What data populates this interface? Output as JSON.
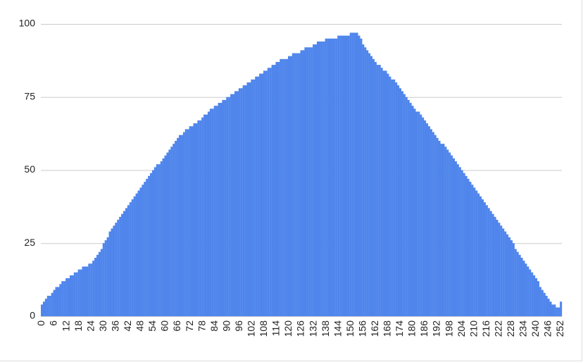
{
  "chart_data": {
    "type": "bar",
    "color": "#5086ec",
    "grid": true,
    "ylim": [
      0,
      100
    ],
    "yticks": [
      0,
      25,
      50,
      75,
      100
    ],
    "categories": [
      "0",
      null,
      null,
      null,
      null,
      null,
      "6",
      null,
      null,
      null,
      null,
      null,
      "12",
      null,
      null,
      null,
      null,
      null,
      "18",
      null,
      null,
      null,
      null,
      null,
      "24",
      null,
      null,
      null,
      null,
      null,
      "30",
      null,
      null,
      null,
      null,
      null,
      "36",
      null,
      null,
      null,
      null,
      null,
      "42",
      null,
      null,
      null,
      null,
      null,
      "48",
      null,
      null,
      null,
      null,
      null,
      "54",
      null,
      null,
      null,
      null,
      null,
      "60",
      null,
      null,
      null,
      null,
      null,
      "66",
      null,
      null,
      null,
      null,
      null,
      "72",
      null,
      null,
      null,
      null,
      null,
      "78",
      null,
      null,
      null,
      null,
      null,
      "84",
      null,
      null,
      null,
      null,
      null,
      "90",
      null,
      null,
      null,
      null,
      null,
      "96",
      null,
      null,
      null,
      null,
      null,
      "102",
      null,
      null,
      null,
      null,
      null,
      "108",
      null,
      null,
      null,
      null,
      null,
      "114",
      null,
      null,
      null,
      null,
      null,
      "120",
      null,
      null,
      null,
      null,
      null,
      "126",
      null,
      null,
      null,
      null,
      null,
      "132",
      null,
      null,
      null,
      null,
      null,
      "138",
      null,
      null,
      null,
      null,
      null,
      "144",
      null,
      null,
      null,
      null,
      null,
      "150",
      null,
      null,
      null,
      null,
      null,
      "156",
      null,
      null,
      null,
      null,
      null,
      "162",
      null,
      null,
      null,
      null,
      null,
      "168",
      null,
      null,
      null,
      null,
      null,
      "174",
      null,
      null,
      null,
      null,
      null,
      "180",
      null,
      null,
      null,
      null,
      null,
      "186",
      null,
      null,
      null,
      null,
      null,
      "192",
      null,
      null,
      null,
      null,
      null,
      "198",
      null,
      null,
      null,
      null,
      null,
      "204",
      null,
      null,
      null,
      null,
      null,
      "210",
      null,
      null,
      null,
      null,
      null,
      "216",
      null,
      null,
      null,
      null,
      null,
      "222",
      null,
      null,
      null,
      null,
      null,
      "228",
      null,
      null,
      null,
      null,
      null,
      "234",
      null,
      null,
      null,
      null,
      null,
      "240",
      null,
      null,
      null,
      null,
      null,
      "246",
      null,
      null,
      null,
      null,
      null,
      "252"
    ],
    "values": [
      4,
      5,
      6,
      7,
      7,
      8,
      9,
      10,
      10,
      11,
      12,
      12,
      13,
      13,
      14,
      14,
      15,
      15,
      16,
      16,
      17,
      17,
      17,
      18,
      18,
      19,
      20,
      21,
      22,
      23,
      25,
      26,
      27,
      29,
      30,
      31,
      32,
      33,
      34,
      35,
      36,
      37,
      38,
      39,
      40,
      41,
      42,
      43,
      44,
      45,
      46,
      47,
      48,
      49,
      50,
      51,
      52,
      52,
      53,
      54,
      55,
      56,
      57,
      58,
      59,
      60,
      61,
      62,
      62,
      63,
      64,
      64,
      65,
      65,
      66,
      66,
      67,
      67,
      68,
      69,
      69,
      70,
      71,
      71,
      72,
      72,
      73,
      73,
      74,
      74,
      75,
      75,
      76,
      76,
      77,
      77,
      78,
      78,
      79,
      79,
      80,
      80,
      81,
      81,
      82,
      82,
      83,
      83,
      84,
      84,
      85,
      85,
      86,
      86,
      87,
      87,
      88,
      88,
      88,
      88,
      89,
      89,
      90,
      90,
      90,
      90,
      91,
      91,
      92,
      92,
      92,
      92,
      93,
      93,
      94,
      94,
      94,
      94,
      95,
      95,
      95,
      95,
      95,
      95,
      96,
      96,
      96,
      96,
      96,
      96,
      97,
      97,
      97,
      97,
      96,
      95,
      93,
      92,
      91,
      90,
      89,
      88,
      87,
      86,
      86,
      85,
      84,
      84,
      83,
      82,
      81,
      81,
      80,
      79,
      78,
      77,
      76,
      75,
      74,
      73,
      72,
      71,
      70,
      70,
      69,
      68,
      67,
      66,
      65,
      64,
      63,
      62,
      61,
      60,
      59,
      59,
      58,
      57,
      56,
      55,
      54,
      53,
      52,
      51,
      50,
      49,
      48,
      47,
      46,
      45,
      44,
      43,
      42,
      41,
      40,
      39,
      38,
      37,
      36,
      35,
      34,
      33,
      32,
      31,
      30,
      29,
      28,
      27,
      26,
      25,
      23,
      22,
      21,
      20,
      19,
      18,
      17,
      16,
      15,
      14,
      13,
      12,
      10,
      9,
      8,
      7,
      6,
      5,
      4,
      4,
      3,
      3,
      5
    ]
  }
}
